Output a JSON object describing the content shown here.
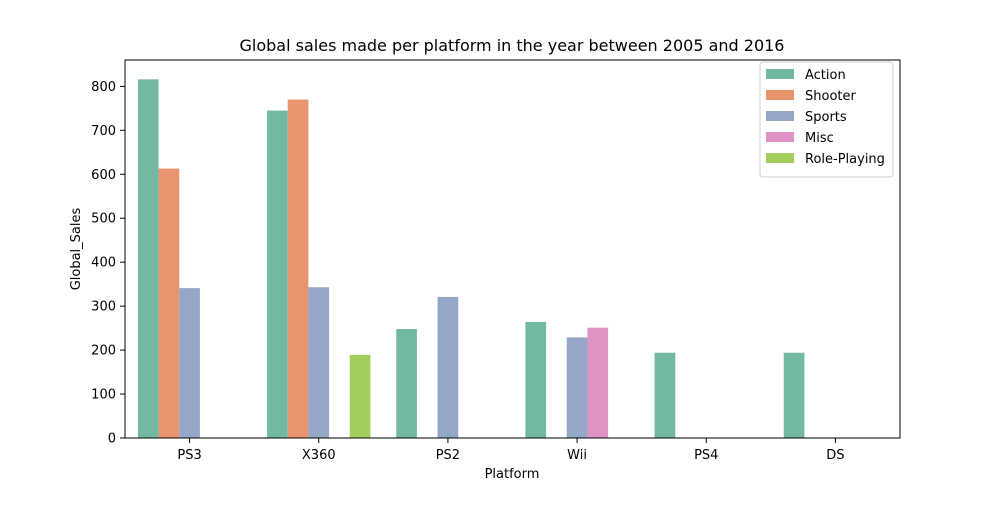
{
  "chart_data": {
    "type": "bar",
    "title": "Global sales made per platform in the year between 2005 and 2016",
    "xlabel": "Platform",
    "ylabel": "Global_Sales",
    "ylim": [
      0,
      860
    ],
    "yticks": [
      0,
      100,
      200,
      300,
      400,
      500,
      600,
      700,
      800
    ],
    "grid": false,
    "legend_position": "top-right",
    "categories": [
      "PS3",
      "X360",
      "PS2",
      "Wii",
      "PS4",
      "DS"
    ],
    "series": [
      {
        "name": "Action",
        "color": "#73b8a2",
        "values": [
          816,
          745,
          248,
          264,
          194,
          194
        ]
      },
      {
        "name": "Shooter",
        "color": "#e8956f",
        "values": [
          613,
          770,
          null,
          null,
          null,
          null
        ]
      },
      {
        "name": "Sports",
        "color": "#96a6c8",
        "values": [
          341,
          343,
          321,
          229,
          null,
          null
        ]
      },
      {
        "name": "Misc",
        "color": "#de93c2",
        "values": [
          null,
          null,
          null,
          251,
          null,
          null
        ]
      },
      {
        "name": "Role-Playing",
        "color": "#a3cd5d",
        "values": [
          null,
          189,
          null,
          null,
          null,
          null
        ]
      }
    ]
  }
}
